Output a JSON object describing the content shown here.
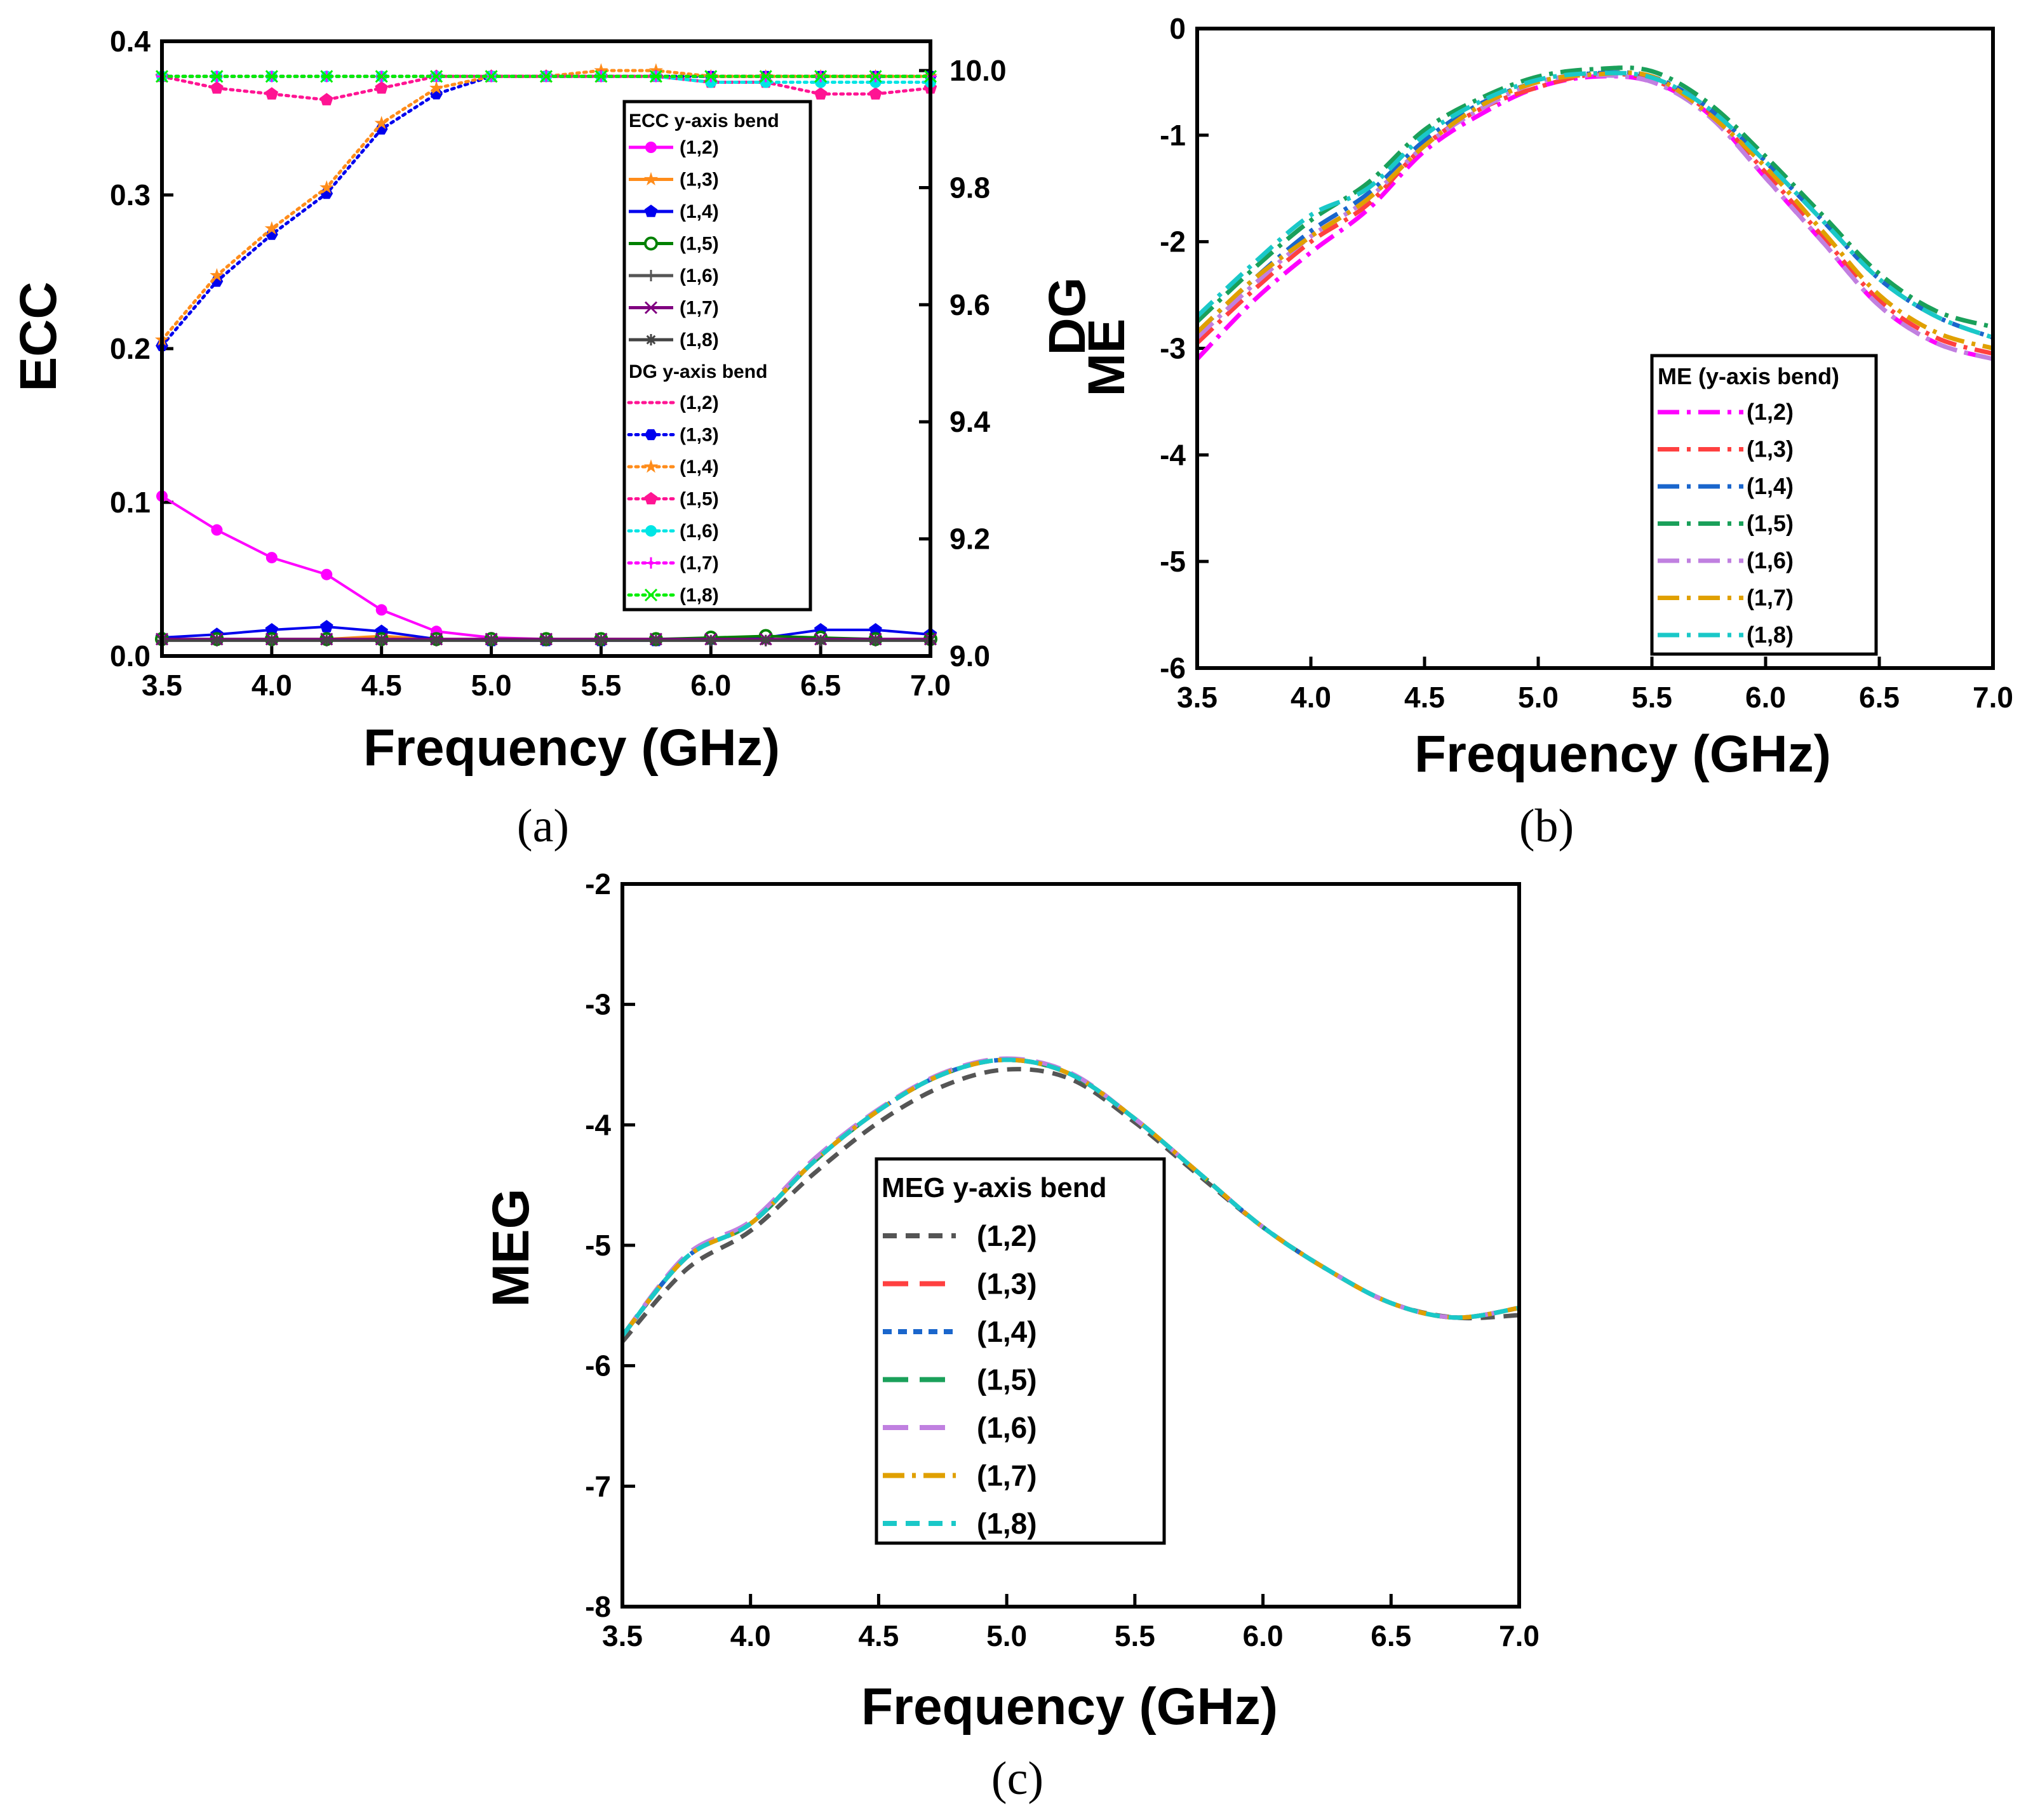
{
  "chart_data": [
    {
      "panel": "(a)",
      "type": "line",
      "xlabel": "Frequency (GHz)",
      "ylabel": "ECC",
      "y2label": "DG",
      "xlim": [
        3.5,
        7.0
      ],
      "ylim": [
        0.0,
        0.4
      ],
      "y2lim": [
        9.0,
        10.05
      ],
      "xticks": [
        "3.5",
        "4.0",
        "4.5",
        "5.0",
        "5.5",
        "6.0",
        "6.5",
        "7.0"
      ],
      "yticks": [
        "0.0",
        "0.1",
        "0.2",
        "0.3",
        "0.4"
      ],
      "y2ticks": [
        "9.0",
        "9.2",
        "9.4",
        "9.6",
        "9.8",
        "10.0"
      ],
      "x": [
        3.5,
        3.75,
        4.0,
        4.25,
        4.5,
        4.75,
        5.0,
        5.25,
        5.5,
        5.75,
        6.0,
        6.25,
        6.5,
        6.75,
        7.0
      ],
      "legend_ecc_title": "ECC y-axis bend",
      "legend_dg_title": "DG y-axis bend",
      "ecc_series": [
        {
          "name": "(1,2)",
          "color": "#ff00ff",
          "marker": "circle",
          "values": [
            0.104,
            0.082,
            0.064,
            0.053,
            0.03,
            0.016,
            0.012,
            0.011,
            0.011,
            0.011,
            0.011,
            0.011,
            0.011,
            0.011,
            0.011
          ]
        },
        {
          "name": "(1,3)",
          "color": "#ff8c1a",
          "marker": "star",
          "values": [
            0.011,
            0.011,
            0.011,
            0.011,
            0.013,
            0.011,
            0.011,
            0.011,
            0.011,
            0.011,
            0.011,
            0.011,
            0.011,
            0.011,
            0.011
          ]
        },
        {
          "name": "(1,4)",
          "color": "#0000ee",
          "marker": "pentagon",
          "values": [
            0.012,
            0.014,
            0.017,
            0.019,
            0.016,
            0.011,
            0.01,
            0.01,
            0.01,
            0.01,
            0.011,
            0.012,
            0.017,
            0.017,
            0.014
          ]
        },
        {
          "name": "(1,5)",
          "color": "#008000",
          "marker": "halfcircle",
          "values": [
            0.011,
            0.011,
            0.011,
            0.011,
            0.011,
            0.011,
            0.011,
            0.011,
            0.011,
            0.011,
            0.012,
            0.013,
            0.012,
            0.011,
            0.011
          ]
        },
        {
          "name": "(1,6)",
          "color": "#555555",
          "marker": "plus",
          "values": [
            0.01,
            0.01,
            0.01,
            0.01,
            0.01,
            0.01,
            0.01,
            0.01,
            0.01,
            0.01,
            0.01,
            0.01,
            0.01,
            0.01,
            0.01
          ]
        },
        {
          "name": "(1,7)",
          "color": "#800080",
          "marker": "x",
          "values": [
            0.011,
            0.011,
            0.011,
            0.011,
            0.011,
            0.011,
            0.011,
            0.011,
            0.011,
            0.011,
            0.011,
            0.011,
            0.011,
            0.011,
            0.011
          ]
        },
        {
          "name": "(1,8)",
          "color": "#444444",
          "marker": "asterisk",
          "values": [
            0.01,
            0.01,
            0.01,
            0.01,
            0.01,
            0.01,
            0.01,
            0.01,
            0.01,
            0.01,
            0.01,
            0.01,
            0.01,
            0.01,
            0.01
          ]
        }
      ],
      "dg_series": [
        {
          "name": "(1,2)",
          "color": "#ff1493",
          "marker": "none",
          "values": [
            9.99,
            9.99,
            9.99,
            9.99,
            9.99,
            9.99,
            9.99,
            9.99,
            9.99,
            9.99,
            9.99,
            9.99,
            9.99,
            9.99,
            9.99
          ]
        },
        {
          "name": "(1,3)",
          "color": "#0000ee",
          "marker": "hexagon",
          "values": [
            9.53,
            9.64,
            9.72,
            9.79,
            9.9,
            9.96,
            9.99,
            9.99,
            9.99,
            9.99,
            9.99,
            9.99,
            9.99,
            9.99,
            9.99
          ]
        },
        {
          "name": "(1,4)",
          "color": "#ff8c1a",
          "marker": "star",
          "values": [
            9.54,
            9.65,
            9.73,
            9.8,
            9.91,
            9.97,
            9.99,
            9.99,
            10.0,
            10.0,
            9.99,
            9.99,
            9.99,
            9.99,
            9.99
          ]
        },
        {
          "name": "(1,5)",
          "color": "#ff1493",
          "marker": "pentagon",
          "values": [
            9.99,
            9.97,
            9.96,
            9.95,
            9.97,
            9.99,
            9.99,
            9.99,
            9.99,
            9.99,
            9.98,
            9.98,
            9.96,
            9.96,
            9.97
          ]
        },
        {
          "name": "(1,6)",
          "color": "#00e5e5",
          "marker": "circle",
          "values": [
            9.99,
            9.99,
            9.99,
            9.99,
            9.99,
            9.99,
            9.99,
            9.99,
            9.99,
            9.99,
            9.98,
            9.98,
            9.98,
            9.98,
            9.98
          ]
        },
        {
          "name": "(1,7)",
          "color": "#ff00ff",
          "marker": "plus",
          "values": [
            9.99,
            9.99,
            9.99,
            9.99,
            9.99,
            9.99,
            9.99,
            9.99,
            9.99,
            9.99,
            9.99,
            9.99,
            9.99,
            9.99,
            9.99
          ]
        },
        {
          "name": "(1,8)",
          "color": "#00ee00",
          "marker": "x",
          "values": [
            9.99,
            9.99,
            9.99,
            9.99,
            9.99,
            9.99,
            9.99,
            9.99,
            9.99,
            9.99,
            9.99,
            9.99,
            9.99,
            9.99,
            9.99
          ]
        }
      ]
    },
    {
      "panel": "(b)",
      "type": "line",
      "xlabel": "Frequency (GHz)",
      "ylabel": "ME",
      "xlim": [
        3.5,
        7.0
      ],
      "ylim": [
        -6,
        0
      ],
      "xticks": [
        "3.5",
        "4.0",
        "4.5",
        "5.0",
        "5.5",
        "6.0",
        "6.5",
        "7.0"
      ],
      "yticks": [
        "-6",
        "-5",
        "-4",
        "-3",
        "-2",
        "-1",
        "0"
      ],
      "legend_title": "ME (y-axis bend)",
      "x": [
        3.5,
        3.75,
        4.0,
        4.25,
        4.5,
        4.75,
        5.0,
        5.25,
        5.5,
        5.75,
        6.0,
        6.25,
        6.5,
        6.75,
        7.0
      ],
      "series": [
        {
          "name": "(1,2)",
          "color": "#ff00ff",
          "dash": "dashdot",
          "values": [
            -3.1,
            -2.55,
            -2.1,
            -1.7,
            -1.15,
            -0.8,
            -0.55,
            -0.45,
            -0.5,
            -0.8,
            -1.4,
            -2.0,
            -2.6,
            -2.95,
            -3.1
          ]
        },
        {
          "name": "(1,3)",
          "color": "#ff4040",
          "dash": "dashdot",
          "values": [
            -2.95,
            -2.45,
            -2.0,
            -1.65,
            -1.1,
            -0.75,
            -0.55,
            -0.43,
            -0.48,
            -0.78,
            -1.35,
            -1.95,
            -2.55,
            -2.9,
            -3.05
          ]
        },
        {
          "name": "(1,4)",
          "color": "#1a66cc",
          "dash": "dashdot",
          "values": [
            -2.85,
            -2.35,
            -1.9,
            -1.55,
            -1.05,
            -0.7,
            -0.5,
            -0.42,
            -0.45,
            -0.75,
            -1.25,
            -1.8,
            -2.35,
            -2.7,
            -2.9
          ]
        },
        {
          "name": "(1,5)",
          "color": "#1aa05a",
          "dash": "dashdot",
          "values": [
            -2.75,
            -2.25,
            -1.8,
            -1.45,
            -0.95,
            -0.65,
            -0.45,
            -0.38,
            -0.4,
            -0.7,
            -1.2,
            -1.75,
            -2.3,
            -2.65,
            -2.8
          ]
        },
        {
          "name": "(1,6)",
          "color": "#c080e0",
          "dash": "dashdot",
          "values": [
            -2.9,
            -2.4,
            -1.95,
            -1.6,
            -1.1,
            -0.75,
            -0.5,
            -0.44,
            -0.5,
            -0.82,
            -1.4,
            -2.0,
            -2.6,
            -2.95,
            -3.1
          ]
        },
        {
          "name": "(1,7)",
          "color": "#e0a000",
          "dash": "dashdot",
          "values": [
            -2.85,
            -2.35,
            -1.95,
            -1.6,
            -1.1,
            -0.72,
            -0.5,
            -0.43,
            -0.45,
            -0.8,
            -1.3,
            -1.9,
            -2.5,
            -2.85,
            -3.0
          ]
        },
        {
          "name": "(1,8)",
          "color": "#1ac8c8",
          "dash": "dashdot",
          "values": [
            -2.7,
            -2.2,
            -1.75,
            -1.5,
            -1.0,
            -0.68,
            -0.48,
            -0.42,
            -0.46,
            -0.75,
            -1.25,
            -1.8,
            -2.35,
            -2.7,
            -2.9
          ]
        }
      ]
    },
    {
      "panel": "(c)",
      "type": "line",
      "xlabel": "Frequency (GHz)",
      "ylabel": "MEG",
      "xlim": [
        3.5,
        7.0
      ],
      "ylim": [
        -8,
        -2
      ],
      "xticks": [
        "3.5",
        "4.0",
        "4.5",
        "5.0",
        "5.5",
        "6.0",
        "6.5",
        "7.0"
      ],
      "yticks": [
        "-8",
        "-7",
        "-6",
        "-5",
        "-4",
        "-3",
        "-2"
      ],
      "legend_title": "MEG y-axis bend",
      "x": [
        3.5,
        3.75,
        4.0,
        4.25,
        4.5,
        4.75,
        5.0,
        5.25,
        5.5,
        5.75,
        6.0,
        6.25,
        6.5,
        6.75,
        7.0
      ],
      "series": [
        {
          "name": "(1,2)",
          "color": "#555555",
          "dash": "dash",
          "values": [
            -5.8,
            -5.2,
            -4.88,
            -4.4,
            -3.98,
            -3.68,
            -3.54,
            -3.62,
            -3.98,
            -4.42,
            -4.85,
            -5.2,
            -5.48,
            -5.6,
            -5.58
          ]
        },
        {
          "name": "(1,3)",
          "color": "#ff4040",
          "dash": "longdash",
          "values": [
            -5.75,
            -5.1,
            -4.82,
            -4.3,
            -3.88,
            -3.58,
            -3.46,
            -3.58,
            -3.95,
            -4.4,
            -4.85,
            -5.2,
            -5.48,
            -5.6,
            -5.52
          ]
        },
        {
          "name": "(1,4)",
          "color": "#1a66cc",
          "dash": "dot",
          "values": [
            -5.75,
            -5.1,
            -4.82,
            -4.3,
            -3.88,
            -3.58,
            -3.46,
            -3.58,
            -3.95,
            -4.4,
            -4.85,
            -5.2,
            -5.48,
            -5.6,
            -5.52
          ]
        },
        {
          "name": "(1,5)",
          "color": "#1aa05a",
          "dash": "longdash",
          "values": [
            -5.75,
            -5.1,
            -4.82,
            -4.3,
            -3.88,
            -3.58,
            -3.46,
            -3.58,
            -3.95,
            -4.4,
            -4.85,
            -5.2,
            -5.48,
            -5.6,
            -5.52
          ]
        },
        {
          "name": "(1,6)",
          "color": "#c080e0",
          "dash": "longdash",
          "values": [
            -5.75,
            -5.08,
            -4.8,
            -4.28,
            -3.87,
            -3.57,
            -3.45,
            -3.57,
            -3.95,
            -4.4,
            -4.85,
            -5.2,
            -5.48,
            -5.6,
            -5.52
          ]
        },
        {
          "name": "(1,7)",
          "color": "#e0a000",
          "dash": "dashdot",
          "values": [
            -5.75,
            -5.1,
            -4.82,
            -4.3,
            -3.88,
            -3.58,
            -3.46,
            -3.58,
            -3.95,
            -4.4,
            -4.85,
            -5.2,
            -5.48,
            -5.6,
            -5.52
          ]
        },
        {
          "name": "(1,8)",
          "color": "#1ac8c8",
          "dash": "dash",
          "values": [
            -5.75,
            -5.1,
            -4.82,
            -4.3,
            -3.88,
            -3.58,
            -3.46,
            -3.58,
            -3.95,
            -4.4,
            -4.85,
            -5.2,
            -5.48,
            -5.6,
            -5.52
          ]
        }
      ]
    }
  ]
}
